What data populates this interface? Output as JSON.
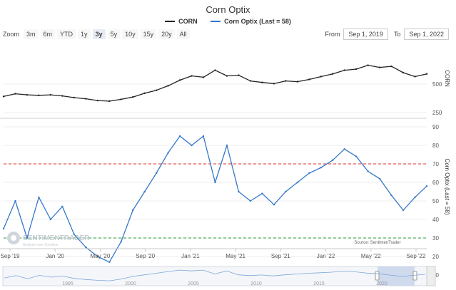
{
  "title": "Corn Optix",
  "legend": [
    {
      "name": "CORN",
      "color": "#222222"
    },
    {
      "name": "Corn Optix (Last = 58)",
      "color": "#3478c8"
    }
  ],
  "toolbar": {
    "zoom_label": "Zoom",
    "buttons": [
      "3m",
      "6m",
      "YTD",
      "1y",
      "3y",
      "5y",
      "10y",
      "15y",
      "20y",
      "All"
    ],
    "active": "3y"
  },
  "range": {
    "from_label": "From",
    "from": "Sep 1, 2019",
    "to_label": "To",
    "to": "Sep 1, 2022"
  },
  "watermark": {
    "brand": "SENTIMENTRADER",
    "tagline": "Analysis over Emotion"
  },
  "source": "Source: SentimenTrader",
  "colors": {
    "corn": "#222222",
    "optix": "#3478c8",
    "upper_line": "#e0302b",
    "lower_line": "#2b9b3a"
  },
  "chart_data": {
    "type": "line",
    "x_ticks": [
      "Sep '19",
      "Jan '20",
      "May '20",
      "Sep '20",
      "Jan '21",
      "May '21",
      "Sep '21",
      "Jan '22",
      "May '22",
      "Sep '22"
    ],
    "corn": {
      "name": "CORN",
      "axis_label": "CORN",
      "scale": "log",
      "ticks": [
        250,
        500
      ],
      "x": [
        0,
        1,
        2,
        3,
        4,
        5,
        6,
        7,
        8,
        9,
        10,
        11,
        12,
        13,
        14,
        15,
        16,
        17,
        18,
        19,
        20,
        21,
        22,
        23,
        24,
        25,
        26,
        27,
        28,
        29,
        30,
        31,
        32,
        33,
        34,
        35,
        36
      ],
      "values": [
        370,
        395,
        385,
        380,
        385,
        375,
        360,
        350,
        335,
        330,
        345,
        365,
        400,
        430,
        480,
        550,
        610,
        590,
        700,
        610,
        620,
        540,
        520,
        505,
        540,
        530,
        560,
        600,
        640,
        700,
        720,
        790,
        750,
        770,
        660,
        600,
        640
      ]
    },
    "optix": {
      "name": "Corn Optix (Last = 58)",
      "axis_label": "Corn Optix (Last = 58)",
      "ylim": [
        5,
        95
      ],
      "ticks": [
        10,
        20,
        30,
        40,
        50,
        60,
        70,
        80,
        90
      ],
      "x": [
        0,
        1,
        2,
        3,
        4,
        5,
        6,
        7,
        8,
        9,
        10,
        11,
        12,
        13,
        14,
        15,
        16,
        17,
        18,
        19,
        20,
        21,
        22,
        23,
        24,
        25,
        26,
        27,
        28,
        29,
        30,
        31,
        32,
        33,
        34,
        35,
        36
      ],
      "values": [
        35,
        50,
        30,
        52,
        40,
        47,
        32,
        25,
        20,
        17,
        28,
        45,
        55,
        65,
        76,
        85,
        80,
        85,
        60,
        80,
        55,
        50,
        54,
        48,
        55,
        60,
        65,
        68,
        72,
        78,
        74,
        66,
        62,
        53,
        45,
        52,
        58
      ],
      "reference_lines": [
        70,
        30
      ]
    },
    "navigator_ticks": [
      "1995",
      "2000",
      "2005",
      "2010",
      "2015",
      "2020"
    ]
  }
}
